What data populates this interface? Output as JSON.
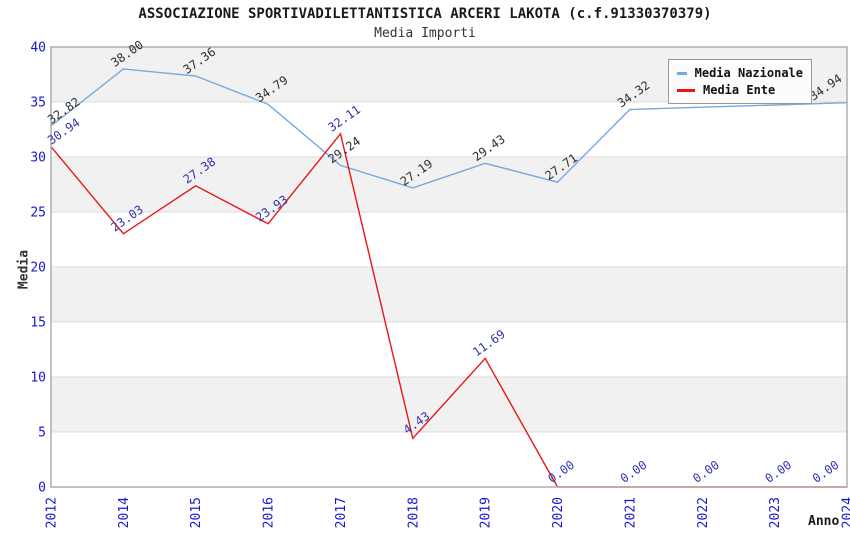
{
  "title": "ASSOCIAZIONE SPORTIVADILETTANTISTICA ARCERI LAKOTA (c.f.91330370379)",
  "subtitle": "Media Importi",
  "axes": {
    "y_title": "Media",
    "x_title": "Anno",
    "y_ticks": [
      "0",
      "5",
      "10",
      "15",
      "20",
      "25",
      "30",
      "35",
      "40"
    ]
  },
  "legend": [
    {
      "label": "Media Nazionale",
      "color": "#74a9dd"
    },
    {
      "label": "Media Ente",
      "color": "#e81717"
    }
  ],
  "colors": {
    "tick_label": "#1818cf",
    "value_label_nazionale": "#2f2f2f",
    "value_label_ente": "#3434ac",
    "plot_border": "#b3b3b3",
    "grid_line": "#dcdcdc",
    "band_fill": "#f1f1f1",
    "background": "#ffffff"
  },
  "chart_data": {
    "type": "line",
    "title": "ASSOCIAZIONE SPORTIVADILETTANTISTICA ARCERI LAKOTA (c.f.91330370379)",
    "subtitle": "Media Importi",
    "xlabel": "Anno",
    "ylabel": "Media",
    "ylim": [
      0,
      40
    ],
    "grid": true,
    "legend_position": "top-right",
    "categories": [
      "2012",
      "2014",
      "2015",
      "2016",
      "2017",
      "2018",
      "2019",
      "2020",
      "2021",
      "2022",
      "2023",
      "2024"
    ],
    "series": [
      {
        "name": "Media Nazionale",
        "color": "#74a9dd",
        "label_color": "#2f2f2f",
        "values": [
          32.82,
          38.0,
          37.36,
          34.79,
          29.24,
          27.19,
          29.43,
          27.71,
          34.32,
          34.53,
          34.73,
          34.94
        ],
        "labels": [
          "32.82",
          "38.00",
          "37.36",
          "34.79",
          "29.24",
          "27.19",
          "29.43",
          "27.71",
          "34.32",
          null,
          null,
          "34.94"
        ]
      },
      {
        "name": "Media Ente",
        "color": "#e81717",
        "label_color": "#3434ac",
        "values": [
          30.94,
          23.03,
          27.38,
          23.93,
          32.11,
          4.43,
          11.69,
          0,
          0,
          0,
          0,
          0
        ],
        "labels": [
          "30.94",
          "23.03",
          "27.38",
          "23.93",
          "32.11",
          "4.43",
          "11.69",
          "0.00",
          "0.00",
          "0.00",
          "0.00",
          "0.00"
        ]
      }
    ]
  }
}
